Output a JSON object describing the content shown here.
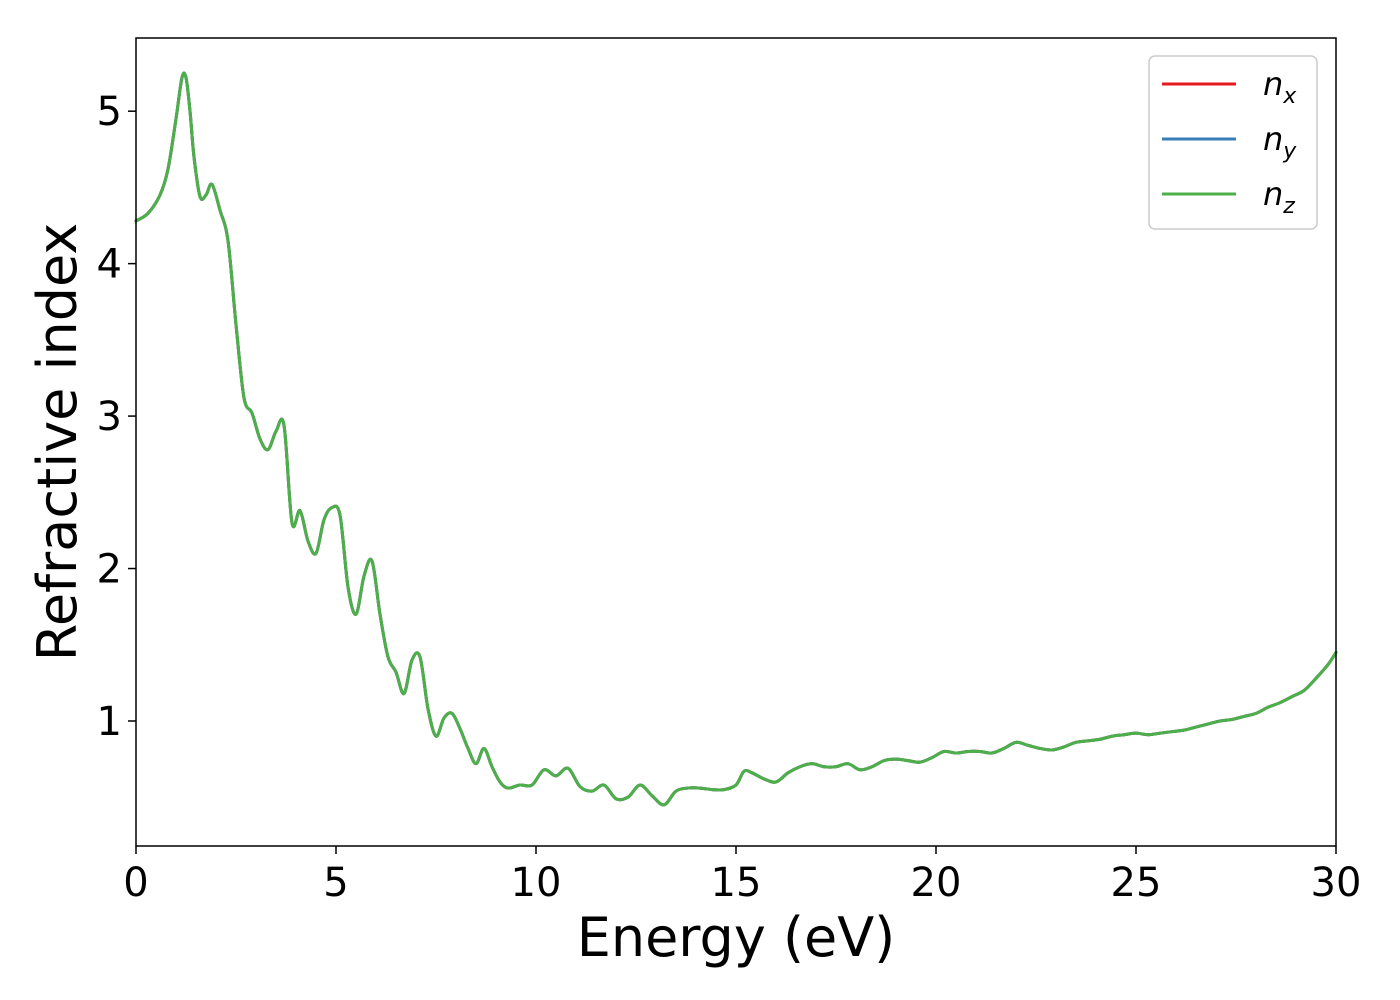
{
  "chart_data": {
    "type": "line",
    "title": "",
    "xlabel": "Energy (eV)",
    "ylabel": "Refractive index",
    "xlim": [
      0,
      30
    ],
    "ylim": [
      0.18,
      5.48
    ],
    "xticks": [
      0,
      5,
      10,
      15,
      20,
      25,
      30
    ],
    "xtick_labels": [
      "0",
      "5",
      "10",
      "15",
      "20",
      "25",
      "30"
    ],
    "yticks": [
      1,
      2,
      3,
      4,
      5
    ],
    "ytick_labels": [
      "1",
      "2",
      "3",
      "4",
      "5"
    ],
    "grid": false,
    "legend_position": "top-right",
    "x": [
      0,
      0.3,
      0.6,
      0.8,
      1.0,
      1.15,
      1.25,
      1.35,
      1.45,
      1.6,
      1.75,
      1.9,
      2.1,
      2.3,
      2.5,
      2.7,
      2.9,
      3.1,
      3.3,
      3.5,
      3.7,
      3.9,
      4.1,
      4.3,
      4.5,
      4.7,
      4.9,
      5.1,
      5.3,
      5.5,
      5.7,
      5.9,
      6.1,
      6.3,
      6.5,
      6.7,
      6.9,
      7.1,
      7.3,
      7.5,
      7.7,
      7.9,
      8.1,
      8.3,
      8.5,
      8.7,
      8.9,
      9.1,
      9.3,
      9.6,
      9.9,
      10.2,
      10.5,
      10.8,
      11.1,
      11.4,
      11.7,
      12.0,
      12.3,
      12.6,
      12.9,
      13.2,
      13.5,
      13.8,
      14.1,
      14.4,
      14.7,
      15.0,
      15.2,
      15.4,
      15.7,
      16.0,
      16.3,
      16.6,
      16.9,
      17.2,
      17.5,
      17.8,
      18.1,
      18.4,
      18.7,
      19.0,
      19.3,
      19.6,
      19.9,
      20.2,
      20.5,
      20.8,
      21.1,
      21.4,
      21.7,
      22.0,
      22.3,
      22.6,
      22.9,
      23.2,
      23.5,
      23.8,
      24.1,
      24.4,
      24.7,
      25.0,
      25.3,
      25.6,
      25.9,
      26.2,
      26.5,
      26.8,
      27.1,
      27.4,
      27.7,
      28.0,
      28.3,
      28.6,
      28.9,
      29.2,
      29.5,
      29.8,
      30.0
    ],
    "series": [
      {
        "name": "n_x",
        "color": "#e41a1c",
        "values": [
          4.28,
          4.33,
          4.45,
          4.62,
          4.95,
          5.22,
          5.22,
          5.0,
          4.7,
          4.44,
          4.45,
          4.52,
          4.35,
          4.15,
          3.6,
          3.12,
          3.02,
          2.85,
          2.78,
          2.9,
          2.94,
          2.3,
          2.38,
          2.18,
          2.1,
          2.32,
          2.4,
          2.35,
          1.88,
          1.7,
          1.95,
          2.05,
          1.7,
          1.42,
          1.32,
          1.18,
          1.4,
          1.42,
          1.08,
          0.9,
          1.02,
          1.05,
          0.95,
          0.82,
          0.72,
          0.82,
          0.7,
          0.6,
          0.56,
          0.58,
          0.58,
          0.68,
          0.64,
          0.69,
          0.57,
          0.54,
          0.58,
          0.49,
          0.5,
          0.58,
          0.51,
          0.45,
          0.54,
          0.56,
          0.56,
          0.55,
          0.55,
          0.58,
          0.67,
          0.66,
          0.62,
          0.6,
          0.66,
          0.7,
          0.72,
          0.7,
          0.7,
          0.72,
          0.68,
          0.7,
          0.74,
          0.75,
          0.74,
          0.73,
          0.76,
          0.8,
          0.79,
          0.8,
          0.8,
          0.79,
          0.82,
          0.86,
          0.84,
          0.82,
          0.81,
          0.83,
          0.86,
          0.87,
          0.88,
          0.9,
          0.91,
          0.92,
          0.91,
          0.92,
          0.93,
          0.94,
          0.96,
          0.98,
          1.0,
          1.01,
          1.03,
          1.05,
          1.09,
          1.12,
          1.16,
          1.2,
          1.28,
          1.37,
          1.45
        ]
      },
      {
        "name": "n_y",
        "color": "#377eb8",
        "values": [
          4.28,
          4.33,
          4.45,
          4.62,
          4.95,
          5.22,
          5.22,
          5.0,
          4.7,
          4.44,
          4.45,
          4.52,
          4.35,
          4.15,
          3.6,
          3.12,
          3.02,
          2.85,
          2.78,
          2.9,
          2.94,
          2.3,
          2.38,
          2.18,
          2.1,
          2.32,
          2.4,
          2.35,
          1.88,
          1.7,
          1.95,
          2.05,
          1.7,
          1.42,
          1.32,
          1.18,
          1.4,
          1.42,
          1.08,
          0.9,
          1.02,
          1.05,
          0.95,
          0.82,
          0.72,
          0.82,
          0.7,
          0.6,
          0.56,
          0.58,
          0.58,
          0.68,
          0.64,
          0.69,
          0.57,
          0.54,
          0.58,
          0.49,
          0.5,
          0.58,
          0.51,
          0.45,
          0.54,
          0.56,
          0.56,
          0.55,
          0.55,
          0.58,
          0.67,
          0.66,
          0.62,
          0.6,
          0.66,
          0.7,
          0.72,
          0.7,
          0.7,
          0.72,
          0.68,
          0.7,
          0.74,
          0.75,
          0.74,
          0.73,
          0.76,
          0.8,
          0.79,
          0.8,
          0.8,
          0.79,
          0.82,
          0.86,
          0.84,
          0.82,
          0.81,
          0.83,
          0.86,
          0.87,
          0.88,
          0.9,
          0.91,
          0.92,
          0.91,
          0.92,
          0.93,
          0.94,
          0.96,
          0.98,
          1.0,
          1.01,
          1.03,
          1.05,
          1.09,
          1.12,
          1.16,
          1.2,
          1.28,
          1.37,
          1.45
        ]
      },
      {
        "name": "n_z",
        "color": "#4daf4a",
        "values": [
          4.28,
          4.33,
          4.45,
          4.62,
          4.95,
          5.22,
          5.22,
          5.0,
          4.7,
          4.44,
          4.45,
          4.52,
          4.35,
          4.15,
          3.6,
          3.12,
          3.02,
          2.85,
          2.78,
          2.9,
          2.94,
          2.3,
          2.38,
          2.18,
          2.1,
          2.32,
          2.4,
          2.35,
          1.88,
          1.7,
          1.95,
          2.05,
          1.7,
          1.42,
          1.32,
          1.18,
          1.4,
          1.42,
          1.08,
          0.9,
          1.02,
          1.05,
          0.95,
          0.82,
          0.72,
          0.82,
          0.7,
          0.6,
          0.56,
          0.58,
          0.58,
          0.68,
          0.64,
          0.69,
          0.57,
          0.54,
          0.58,
          0.49,
          0.5,
          0.58,
          0.51,
          0.45,
          0.54,
          0.56,
          0.56,
          0.55,
          0.55,
          0.58,
          0.67,
          0.66,
          0.62,
          0.6,
          0.66,
          0.7,
          0.72,
          0.7,
          0.7,
          0.72,
          0.68,
          0.7,
          0.74,
          0.75,
          0.74,
          0.73,
          0.76,
          0.8,
          0.79,
          0.8,
          0.8,
          0.79,
          0.82,
          0.86,
          0.84,
          0.82,
          0.81,
          0.83,
          0.86,
          0.87,
          0.88,
          0.9,
          0.91,
          0.92,
          0.91,
          0.92,
          0.93,
          0.94,
          0.96,
          0.98,
          1.0,
          1.01,
          1.03,
          1.05,
          1.09,
          1.12,
          1.16,
          1.2,
          1.28,
          1.37,
          1.45
        ]
      }
    ],
    "legend": [
      {
        "main": "n",
        "sub": "x",
        "color": "#e41a1c"
      },
      {
        "main": "n",
        "sub": "y",
        "color": "#377eb8"
      },
      {
        "main": "n",
        "sub": "z",
        "color": "#4daf4a"
      }
    ]
  }
}
